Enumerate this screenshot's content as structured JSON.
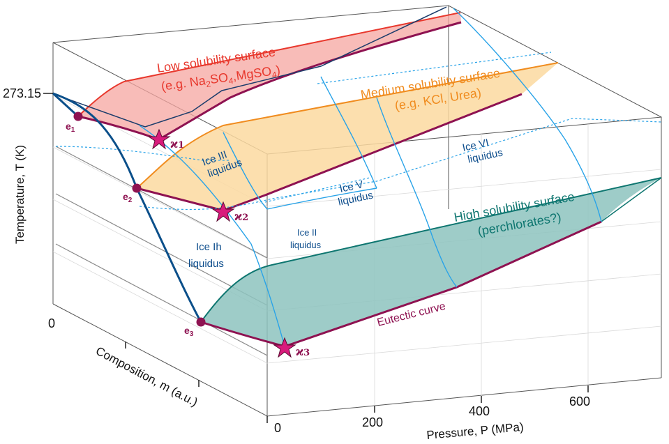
{
  "axes": {
    "temperature_label": "Temperature, T (K)",
    "temperature_tick": "273.15",
    "composition_label": "Composition, m (a.u.)",
    "composition_tick": "0",
    "pressure_label": "Pressure, P (MPa)",
    "pressure_ticks": [
      "0",
      "200",
      "400",
      "600"
    ]
  },
  "surfaces": {
    "low": {
      "title": "Low solubility surface",
      "example_prefix": "(e.g. Na",
      "example_sub1": "2",
      "example_mid": "SO",
      "example_sub2": "4",
      "example_mid2": ",MgSO",
      "example_sub3": "4",
      "example_suffix": ")",
      "fill": "#f5a5a0",
      "edge": "#e8382d"
    },
    "medium": {
      "title": "Medium solubility surface",
      "example": "(e.g. KCl, Urea)",
      "fill": "#fbd9a0",
      "edge": "#f08c1f"
    },
    "high": {
      "title": "High solubility surface",
      "example": "(perchlorates?)",
      "fill": "#8dc3be",
      "edge": "#0e7670"
    }
  },
  "liquidus": {
    "ice_ih": [
      "Ice Ih",
      "liquidus"
    ],
    "ice_ii": [
      "Ice II",
      "liquidus"
    ],
    "ice_iii": [
      "Ice III",
      "liquidus"
    ],
    "ice_v": [
      "Ice V",
      "liquidus"
    ],
    "ice_vi": [
      "Ice VI",
      "liquidus"
    ]
  },
  "points": {
    "e1": {
      "base": "e",
      "sub": "1"
    },
    "e2": {
      "base": "e",
      "sub": "2"
    },
    "e3": {
      "base": "e",
      "sub": "3"
    },
    "k1": {
      "base": "ϰ",
      "sub": "1"
    },
    "k2": {
      "base": "ϰ",
      "sub": "2"
    },
    "k3": {
      "base": "ϰ",
      "sub": "3"
    }
  },
  "eutectic_label": "Eutectic curve",
  "colors": {
    "eutectic": "#8e1251",
    "ice_ih_line": "#0b4f8a",
    "phase_lines": "#29a3e8",
    "box": "#555555",
    "star": "#d81b7c"
  }
}
